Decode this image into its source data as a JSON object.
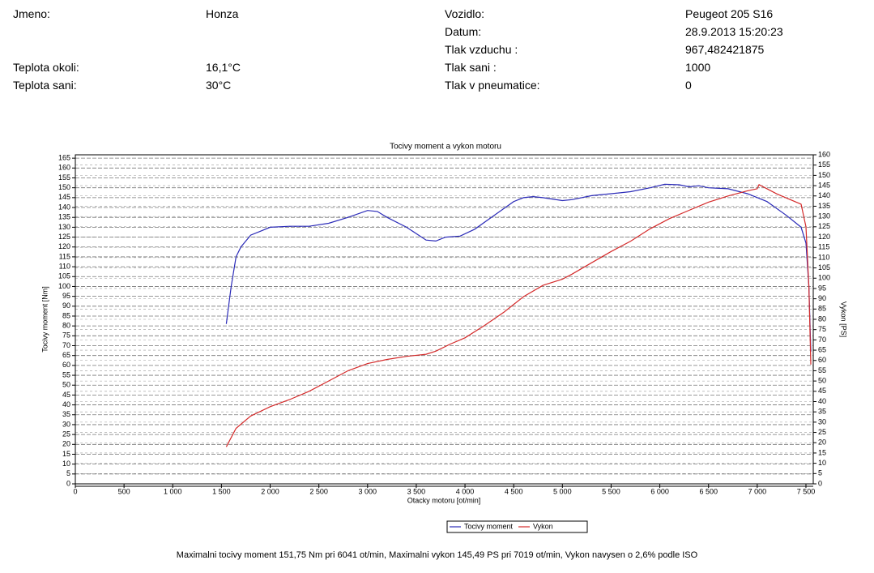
{
  "info": {
    "left": [
      [
        "Jmeno:",
        "Honza"
      ],
      [
        "Teplota okoli:",
        "16,1°C"
      ],
      [
        "Teplota sani:",
        "30°C"
      ]
    ],
    "right": [
      [
        "Vozidlo:",
        "Peugeot 205 S16"
      ],
      [
        "Datum:",
        "28.9.2013 15:20:23"
      ],
      [
        "Tlak vzduchu :",
        "967,482421875"
      ],
      [
        "Tlak sani :",
        "1000"
      ],
      [
        "Tlak v pneumatice:",
        "0"
      ]
    ]
  },
  "chart_data": {
    "type": "line",
    "title": "Tocivy moment a vykon motoru",
    "xlabel": "Otacky motoru [ot/min]",
    "ylabel": "Tocivy moment [Nm]",
    "y2label": "Vykon [PS]",
    "xlim": [
      0,
      7575
    ],
    "ylim": [
      0,
      166.7
    ],
    "y2lim": [
      0,
      160
    ],
    "grid": true,
    "xticks": [
      0,
      500,
      {
        "value": 1000,
        "label": "1 000"
      },
      {
        "value": 1500,
        "label": "1 500"
      },
      {
        "value": 2000,
        "label": "2 000"
      },
      {
        "value": 2500,
        "label": "2 500"
      },
      {
        "value": 3000,
        "label": "3 000"
      },
      {
        "value": 3500,
        "label": "3 500"
      },
      {
        "value": 4000,
        "label": "4 000"
      },
      {
        "value": 4500,
        "label": "4 500"
      },
      {
        "value": 5000,
        "label": "5 000"
      },
      {
        "value": 5500,
        "label": "5 500"
      },
      {
        "value": 6000,
        "label": "6 000"
      },
      {
        "value": 6500,
        "label": "6 500"
      },
      {
        "value": 7000,
        "label": "7 000"
      },
      {
        "value": 7500,
        "label": "7 500"
      }
    ],
    "yticks": [
      0,
      5,
      10,
      15,
      20,
      25,
      30,
      35,
      40,
      45,
      50,
      55,
      60,
      65,
      70,
      75,
      80,
      85,
      90,
      95,
      100,
      105,
      110,
      115,
      120,
      125,
      130,
      135,
      140,
      145,
      150,
      155,
      160,
      165
    ],
    "y2ticks": [
      0,
      5,
      10,
      15,
      20,
      25,
      30,
      35,
      40,
      45,
      50,
      55,
      60,
      65,
      70,
      75,
      80,
      85,
      90,
      95,
      100,
      105,
      110,
      115,
      120,
      125,
      130,
      135,
      140,
      145,
      150,
      155,
      160
    ],
    "series": [
      {
        "name": "Tocivy moment",
        "color": "#2b2bb8",
        "x": [
          1550,
          1600,
          1650,
          1700,
          1800,
          1900,
          2000,
          2200,
          2400,
          2600,
          2800,
          3000,
          3100,
          3200,
          3400,
          3600,
          3700,
          3800,
          3950,
          4100,
          4300,
          4500,
          4600,
          4700,
          4800,
          5000,
          5100,
          5300,
          5500,
          5700,
          5900,
          6050,
          6200,
          6300,
          6400,
          6500,
          6700,
          6900,
          7100,
          7300,
          7400,
          7450,
          7500,
          7530,
          7550
        ],
        "values": [
          81,
          100,
          115,
          120,
          126,
          128,
          130,
          130.5,
          130.5,
          132,
          135,
          138.5,
          138,
          135,
          130,
          123.5,
          123,
          125,
          125.5,
          129,
          136,
          143,
          145,
          145.5,
          145,
          143.5,
          144,
          146,
          147,
          148,
          150,
          151.75,
          151.5,
          150.5,
          151,
          150,
          149.5,
          147,
          143,
          136,
          132,
          130,
          122,
          100,
          67
        ]
      },
      {
        "name": "Vykon",
        "color": "#d42a2a",
        "axis": "y2",
        "x": [
          1550,
          1650,
          1800,
          2000,
          2200,
          2400,
          2600,
          2800,
          3000,
          3200,
          3400,
          3600,
          3700,
          3850,
          4000,
          4200,
          4400,
          4600,
          4800,
          5000,
          5100,
          5300,
          5500,
          5700,
          5900,
          6100,
          6300,
          6500,
          6700,
          6900,
          7000,
          7019,
          7200,
          7300,
          7450,
          7500,
          7530,
          7550
        ],
        "values": [
          18,
          27,
          33,
          37.5,
          41,
          45,
          50,
          55,
          58.5,
          60.5,
          62,
          63,
          64.5,
          68,
          71,
          77,
          83.5,
          91,
          96.5,
          99.5,
          102,
          107.5,
          113,
          118,
          124,
          129,
          133,
          137,
          140,
          142.5,
          143.5,
          145.49,
          141,
          139,
          136,
          125,
          96,
          58
        ]
      }
    ]
  },
  "footer": "Maximalni tocivy moment 151,75 Nm pri 6041 ot/min,  Maximalni vykon 145,49 PS pri 7019 ot/min,  Vykon navysen o 2,6% podle ISO"
}
